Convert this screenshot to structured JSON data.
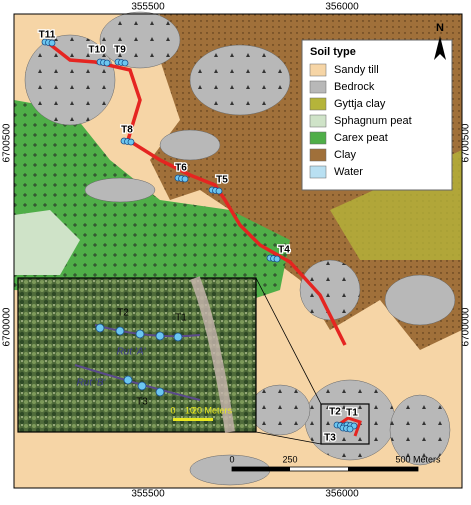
{
  "grid_labels": {
    "x": [
      "355500",
      "356000"
    ],
    "y": [
      "6700500",
      "6700000"
    ]
  },
  "north": "N",
  "legend": {
    "title": "Soil type",
    "items": [
      {
        "label": "Sandy till",
        "color": "#f6d5a6"
      },
      {
        "label": "Bedrock",
        "color": "#b8b8b8"
      },
      {
        "label": "Gyttja clay",
        "color": "#b5b43a"
      },
      {
        "label": "Sphagnum peat",
        "color": "#cfe3c8"
      },
      {
        "label": "Carex peat",
        "color": "#4fae48"
      },
      {
        "label": "Clay",
        "color": "#a0703a"
      },
      {
        "label": "Water",
        "color": "#b9e0f2"
      }
    ]
  },
  "points": [
    "T11",
    "T10",
    "T9",
    "T8",
    "T6",
    "T5",
    "T4",
    "T2",
    "T1",
    "T3"
  ],
  "inset": {
    "labels": [
      "T2",
      "T1",
      "Rut 'A'",
      "Rut 'B'",
      "T3"
    ],
    "scale": [
      "0",
      "10",
      "20 Meters"
    ]
  },
  "scale_bar": [
    "0",
    "250",
    "500 Meters"
  ]
}
